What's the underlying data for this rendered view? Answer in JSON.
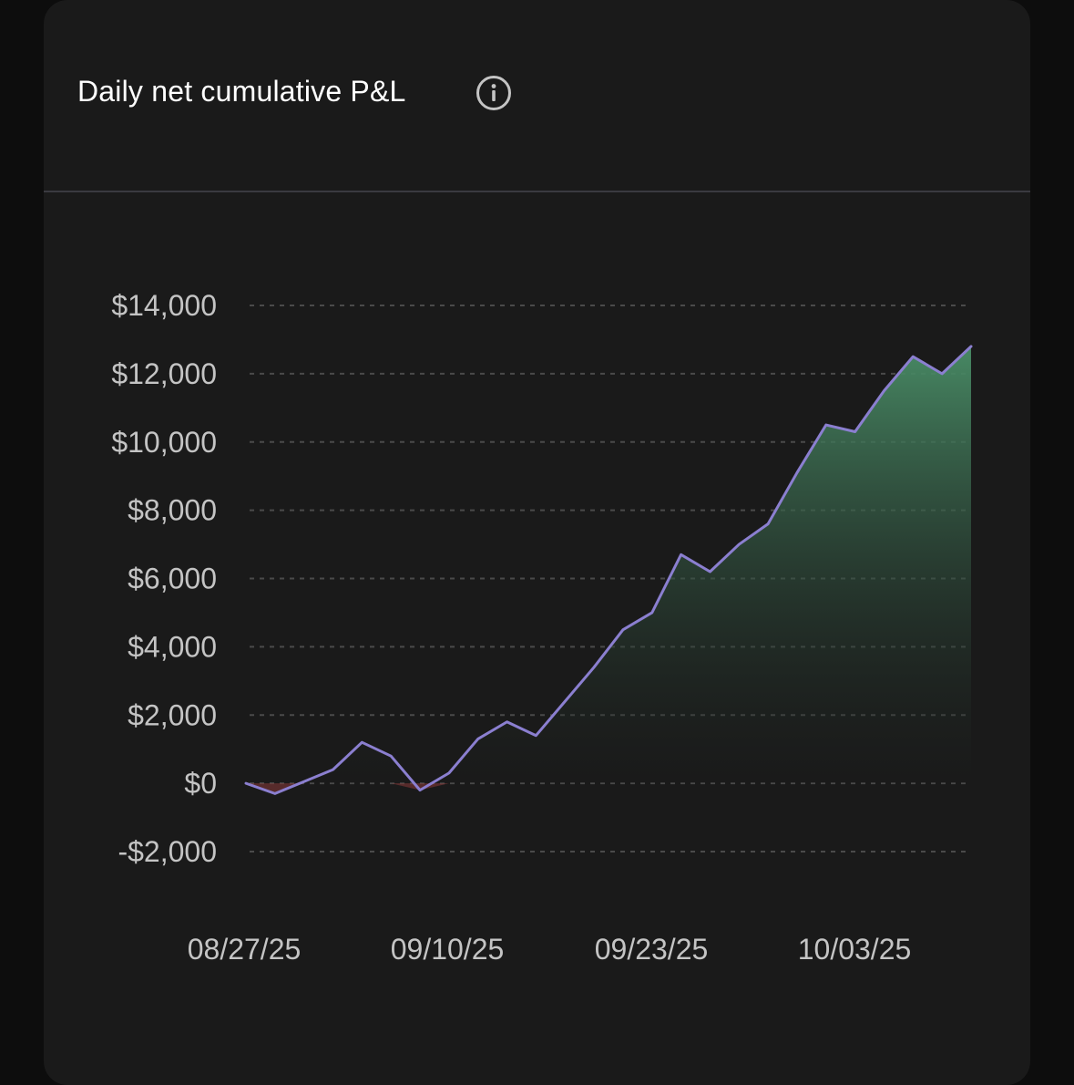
{
  "header": {
    "title": "Daily net cumulative P&L",
    "info_icon": "info-circle-icon"
  },
  "colors": {
    "background": "#0d0d0d",
    "card": "#1a1a1a",
    "line": "#8b7fd0",
    "area_top": "#4a8f68",
    "area_bottom": "#1a1a1a",
    "negative_fill": "#8a3a3a",
    "grid": "#4a4a4a",
    "tick_text": "#c4c4c4",
    "title_text": "#ffffff"
  },
  "chart_data": {
    "type": "area",
    "title": "Daily net cumulative P&L",
    "xlabel": "",
    "ylabel": "",
    "ylim": [
      -2000,
      14000
    ],
    "grid": true,
    "yticks": [
      14000,
      12000,
      10000,
      8000,
      6000,
      4000,
      2000,
      0,
      -2000
    ],
    "ytick_labels": [
      "$14,000",
      "$12,000",
      "$10,000",
      "$8,000",
      "$6,000",
      "$4,000",
      "$2,000",
      "$0",
      "-$2,000"
    ],
    "xtick_labels": [
      "08/27/25",
      "09/10/25",
      "09/23/25",
      "10/03/25"
    ],
    "xtick_indices": [
      0,
      7,
      14,
      21
    ],
    "series": [
      {
        "values": [
          0,
          -300,
          50,
          400,
          1200,
          800,
          -200,
          300,
          1300,
          1800,
          1400,
          2400,
          3400,
          4500,
          5000,
          6700,
          6200,
          7000,
          7600,
          9100,
          10500,
          10300,
          11500,
          12500,
          12000,
          12800
        ]
      }
    ]
  }
}
